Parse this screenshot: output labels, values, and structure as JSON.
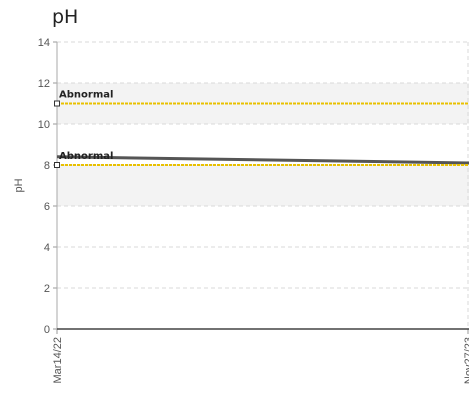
{
  "chart_data": {
    "type": "line",
    "title": "pH",
    "ylabel": "pH",
    "xlabel": "",
    "ylim": [
      0,
      14
    ],
    "yticks": [
      0,
      2,
      4,
      6,
      8,
      10,
      12,
      14
    ],
    "x": [
      "Mar14/22",
      "Nov27/23"
    ],
    "series": [
      {
        "values": [
          8.4,
          8.1
        ],
        "color": "#555555"
      }
    ],
    "reference_lines": [
      {
        "label": "Abnormal",
        "value": 11,
        "color": "#e8c000"
      },
      {
        "label": "Abnormal",
        "value": 8,
        "color": "#e8c000"
      }
    ],
    "shaded_bands": [
      [
        6,
        8
      ],
      [
        10,
        12
      ]
    ],
    "grid": true,
    "legend": "none"
  }
}
